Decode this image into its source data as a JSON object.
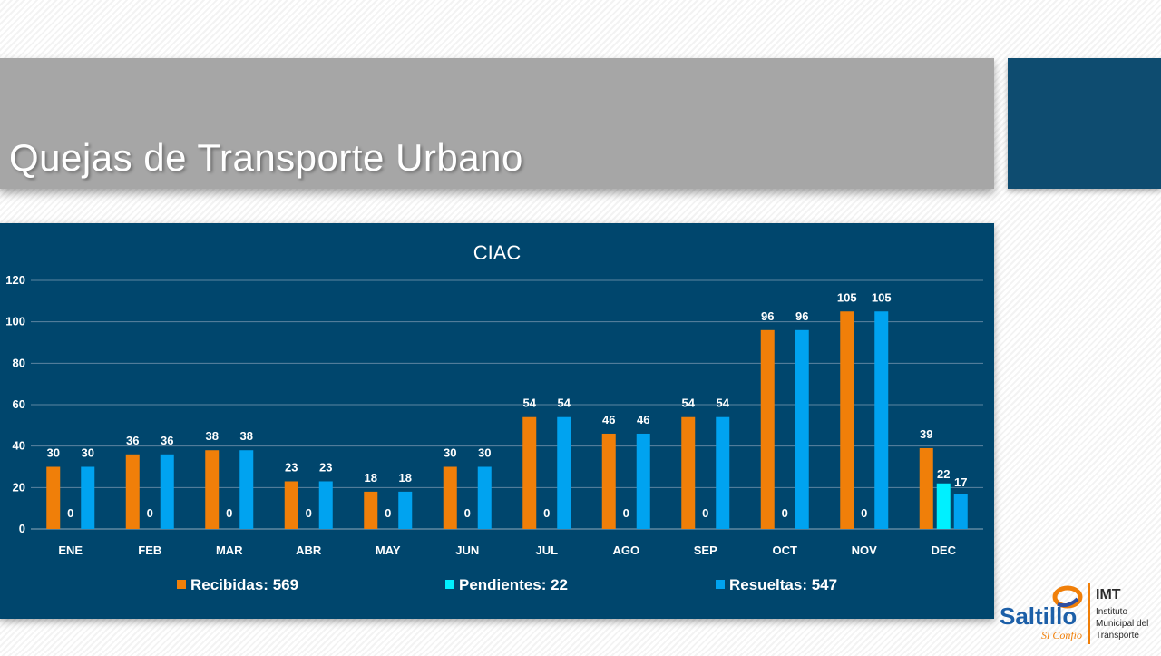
{
  "slide": {
    "title": "Quejas de Transporte Urbano"
  },
  "colors": {
    "title_band": "#a6a6a6",
    "accent_block": "#0e4c70",
    "chart_background": "#00466d",
    "recibidas": "#f07f09",
    "pendientes": "#00f0ff",
    "resueltas": "#00a3f0"
  },
  "logo": {
    "brand": "Saltillo",
    "tagline": "Sí Confío",
    "acronym": "IMT",
    "line1": "Instituto",
    "line2": "Municipal del",
    "line3": "Transporte"
  },
  "chart_data": {
    "type": "bar",
    "title": "CIAC",
    "xlabel": "",
    "ylabel": "",
    "ylim": [
      0,
      120
    ],
    "yticks": [
      0,
      20,
      40,
      60,
      80,
      100,
      120
    ],
    "grid": true,
    "legend_position": "bottom",
    "categories": [
      "ENE",
      "FEB",
      "MAR",
      "ABR",
      "MAY",
      "JUN",
      "JUL",
      "AGO",
      "SEP",
      "OCT",
      "NOV",
      "DEC"
    ],
    "series": [
      {
        "name": "Recibidas: 569",
        "color": "#f07f09",
        "values": [
          30,
          36,
          38,
          23,
          18,
          30,
          54,
          46,
          54,
          96,
          105,
          39
        ]
      },
      {
        "name": "Pendientes: 22",
        "color": "#00f0ff",
        "values": [
          0,
          0,
          0,
          0,
          0,
          0,
          0,
          0,
          0,
          0,
          0,
          22
        ]
      },
      {
        "name": "Resueltas: 547",
        "color": "#00a3f0",
        "values": [
          30,
          36,
          38,
          23,
          18,
          30,
          54,
          46,
          54,
          96,
          105,
          17
        ]
      }
    ]
  }
}
